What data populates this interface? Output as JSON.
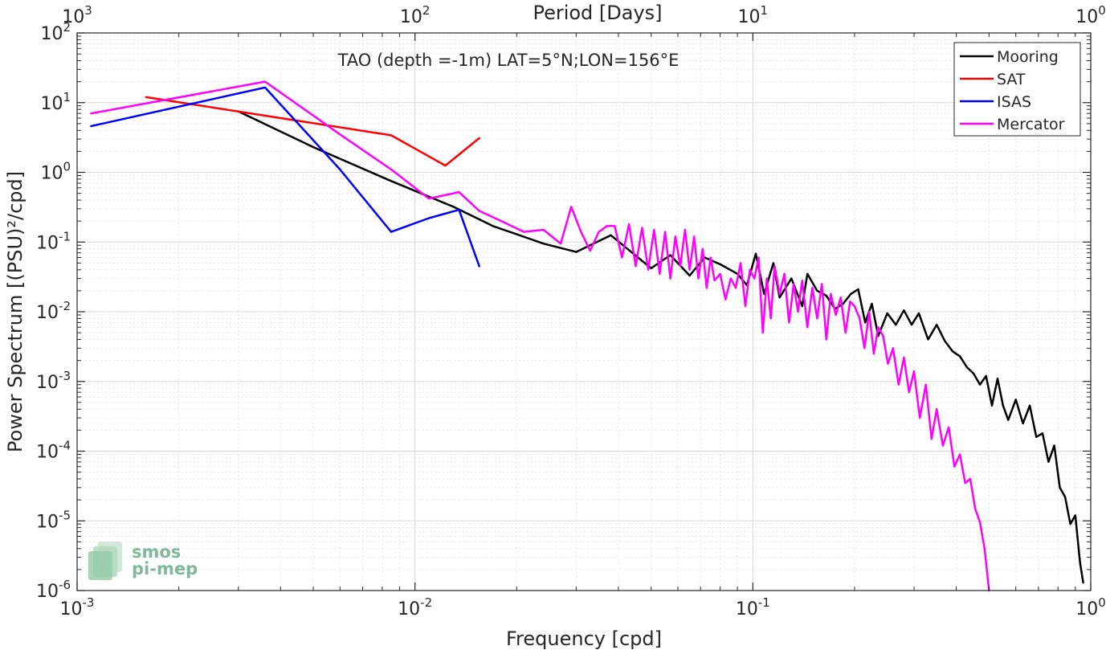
{
  "chart_data": {
    "type": "line",
    "title": "TAO (depth =-1m) LAT=5°N;LON=156°E",
    "xlabel": "Frequency [cpd]",
    "ylabel": "Power Spectrum [(PSU)²/cpd]",
    "top_xlabel": "Period [Days]",
    "xscale": "log",
    "yscale": "log",
    "xlim": [
      0.001,
      1
    ],
    "ylim": [
      1e-06,
      100
    ],
    "grid": true,
    "legend_position": "top-right",
    "x_ticks": [
      {
        "value": 0.001,
        "base": "10",
        "exp": "-3"
      },
      {
        "value": 0.01,
        "base": "10",
        "exp": "-2"
      },
      {
        "value": 0.1,
        "base": "10",
        "exp": "-1"
      },
      {
        "value": 1,
        "base": "10",
        "exp": "0"
      }
    ],
    "top_ticks": [
      {
        "value": 0.001,
        "base": "10",
        "exp": "3"
      },
      {
        "value": 0.01,
        "base": "10",
        "exp": "2"
      },
      {
        "value": 0.1,
        "base": "10",
        "exp": "1"
      },
      {
        "value": 1,
        "base": "10",
        "exp": "0"
      }
    ],
    "y_ticks": [
      {
        "value": 1e-06,
        "base": "10",
        "exp": "-6"
      },
      {
        "value": 1e-05,
        "base": "10",
        "exp": "-5"
      },
      {
        "value": 0.0001,
        "base": "10",
        "exp": "-4"
      },
      {
        "value": 0.001,
        "base": "10",
        "exp": "-3"
      },
      {
        "value": 0.01,
        "base": "10",
        "exp": "-2"
      },
      {
        "value": 0.1,
        "base": "10",
        "exp": "-1"
      },
      {
        "value": 1,
        "base": "10",
        "exp": "0"
      },
      {
        "value": 10,
        "base": "10",
        "exp": "1"
      },
      {
        "value": 100,
        "base": "10",
        "exp": "2"
      }
    ],
    "series": [
      {
        "name": "Mooring",
        "color": "#000000",
        "x": [
          0.003,
          0.005,
          0.0085,
          0.013,
          0.017,
          0.024,
          0.03,
          0.038,
          0.05,
          0.057,
          0.065,
          0.072,
          0.08,
          0.09,
          0.096,
          0.102,
          0.108,
          0.115,
          0.12,
          0.13,
          0.14,
          0.145,
          0.155,
          0.165,
          0.175,
          0.185,
          0.195,
          0.205,
          0.215,
          0.225,
          0.235,
          0.25,
          0.265,
          0.28,
          0.295,
          0.31,
          0.33,
          0.35,
          0.37,
          0.39,
          0.41,
          0.43,
          0.45,
          0.47,
          0.49,
          0.51,
          0.53,
          0.55,
          0.57,
          0.6,
          0.63,
          0.66,
          0.69,
          0.72,
          0.75,
          0.78,
          0.81,
          0.84,
          0.87,
          0.9,
          0.93,
          0.95
        ],
        "y": [
          7.5,
          2.3,
          0.75,
          0.32,
          0.17,
          0.095,
          0.072,
          0.125,
          0.042,
          0.065,
          0.033,
          0.06,
          0.048,
          0.035,
          0.024,
          0.068,
          0.018,
          0.05,
          0.016,
          0.03,
          0.012,
          0.035,
          0.02,
          0.017,
          0.011,
          0.013,
          0.018,
          0.021,
          0.007,
          0.013,
          0.0045,
          0.0095,
          0.0065,
          0.0105,
          0.0065,
          0.0095,
          0.004,
          0.0065,
          0.0038,
          0.0027,
          0.0023,
          0.0016,
          0.0013,
          0.0009,
          0.0012,
          0.00045,
          0.0011,
          0.00045,
          0.00028,
          0.00055,
          0.00025,
          0.00045,
          0.00016,
          0.00018,
          7e-05,
          0.00012,
          3e-05,
          2.2e-05,
          9e-06,
          1.2e-05,
          2.5e-06,
          1.3e-06
        ]
      },
      {
        "name": "SAT",
        "color": "#ff0000",
        "x": [
          0.0016,
          0.0085,
          0.0123,
          0.0155
        ],
        "y": [
          12,
          3.4,
          1.25,
          3.1
        ]
      },
      {
        "name": "ISAS",
        "color": "#0000ff",
        "x": [
          0.0011,
          0.0036,
          0.006,
          0.0085,
          0.011,
          0.0135,
          0.0155
        ],
        "y": [
          4.6,
          16.5,
          1.1,
          0.14,
          0.22,
          0.29,
          0.045
        ]
      },
      {
        "name": "Mercator",
        "color": "#ff00ff",
        "x": [
          0.0011,
          0.0036,
          0.006,
          0.0085,
          0.011,
          0.0135,
          0.0155,
          0.018,
          0.021,
          0.024,
          0.027,
          0.029,
          0.031,
          0.033,
          0.035,
          0.037,
          0.039,
          0.041,
          0.043,
          0.045,
          0.047,
          0.049,
          0.051,
          0.053,
          0.055,
          0.057,
          0.059,
          0.061,
          0.063,
          0.065,
          0.067,
          0.069,
          0.071,
          0.073,
          0.075,
          0.077,
          0.08,
          0.083,
          0.086,
          0.089,
          0.092,
          0.095,
          0.098,
          0.101,
          0.104,
          0.107,
          0.11,
          0.113,
          0.116,
          0.12,
          0.124,
          0.128,
          0.132,
          0.136,
          0.14,
          0.145,
          0.15,
          0.155,
          0.16,
          0.165,
          0.17,
          0.176,
          0.182,
          0.188,
          0.194,
          0.2,
          0.207,
          0.214,
          0.221,
          0.228,
          0.235,
          0.243,
          0.251,
          0.26,
          0.27,
          0.28,
          0.29,
          0.3,
          0.312,
          0.325,
          0.338,
          0.35,
          0.365,
          0.38,
          0.395,
          0.41,
          0.425,
          0.44,
          0.455,
          0.47,
          0.485,
          0.5
        ],
        "y": [
          7,
          20,
          3.5,
          1.1,
          0.42,
          0.52,
          0.28,
          0.2,
          0.14,
          0.15,
          0.095,
          0.32,
          0.14,
          0.075,
          0.14,
          0.17,
          0.17,
          0.06,
          0.18,
          0.045,
          0.16,
          0.04,
          0.15,
          0.035,
          0.14,
          0.03,
          0.12,
          0.045,
          0.15,
          0.04,
          0.12,
          0.03,
          0.08,
          0.022,
          0.06,
          0.028,
          0.035,
          0.015,
          0.03,
          0.022,
          0.05,
          0.012,
          0.04,
          0.03,
          0.06,
          0.005,
          0.03,
          0.008,
          0.045,
          0.018,
          0.035,
          0.007,
          0.025,
          0.01,
          0.028,
          0.006,
          0.022,
          0.008,
          0.025,
          0.004,
          0.018,
          0.009,
          0.016,
          0.005,
          0.014,
          0.012,
          0.008,
          0.003,
          0.01,
          0.0025,
          0.006,
          0.0045,
          0.0018,
          0.003,
          0.0009,
          0.0022,
          0.0007,
          0.0014,
          0.0003,
          0.0009,
          0.00015,
          0.0004,
          0.00012,
          0.00022,
          6e-05,
          9e-05,
          3.5e-05,
          4e-05,
          1.5e-05,
          9.5e-06,
          4e-06,
          1e-06
        ]
      }
    ]
  },
  "logo": {
    "line1": "smos",
    "line2": "pi-mep",
    "color": "#7fb99a"
  }
}
